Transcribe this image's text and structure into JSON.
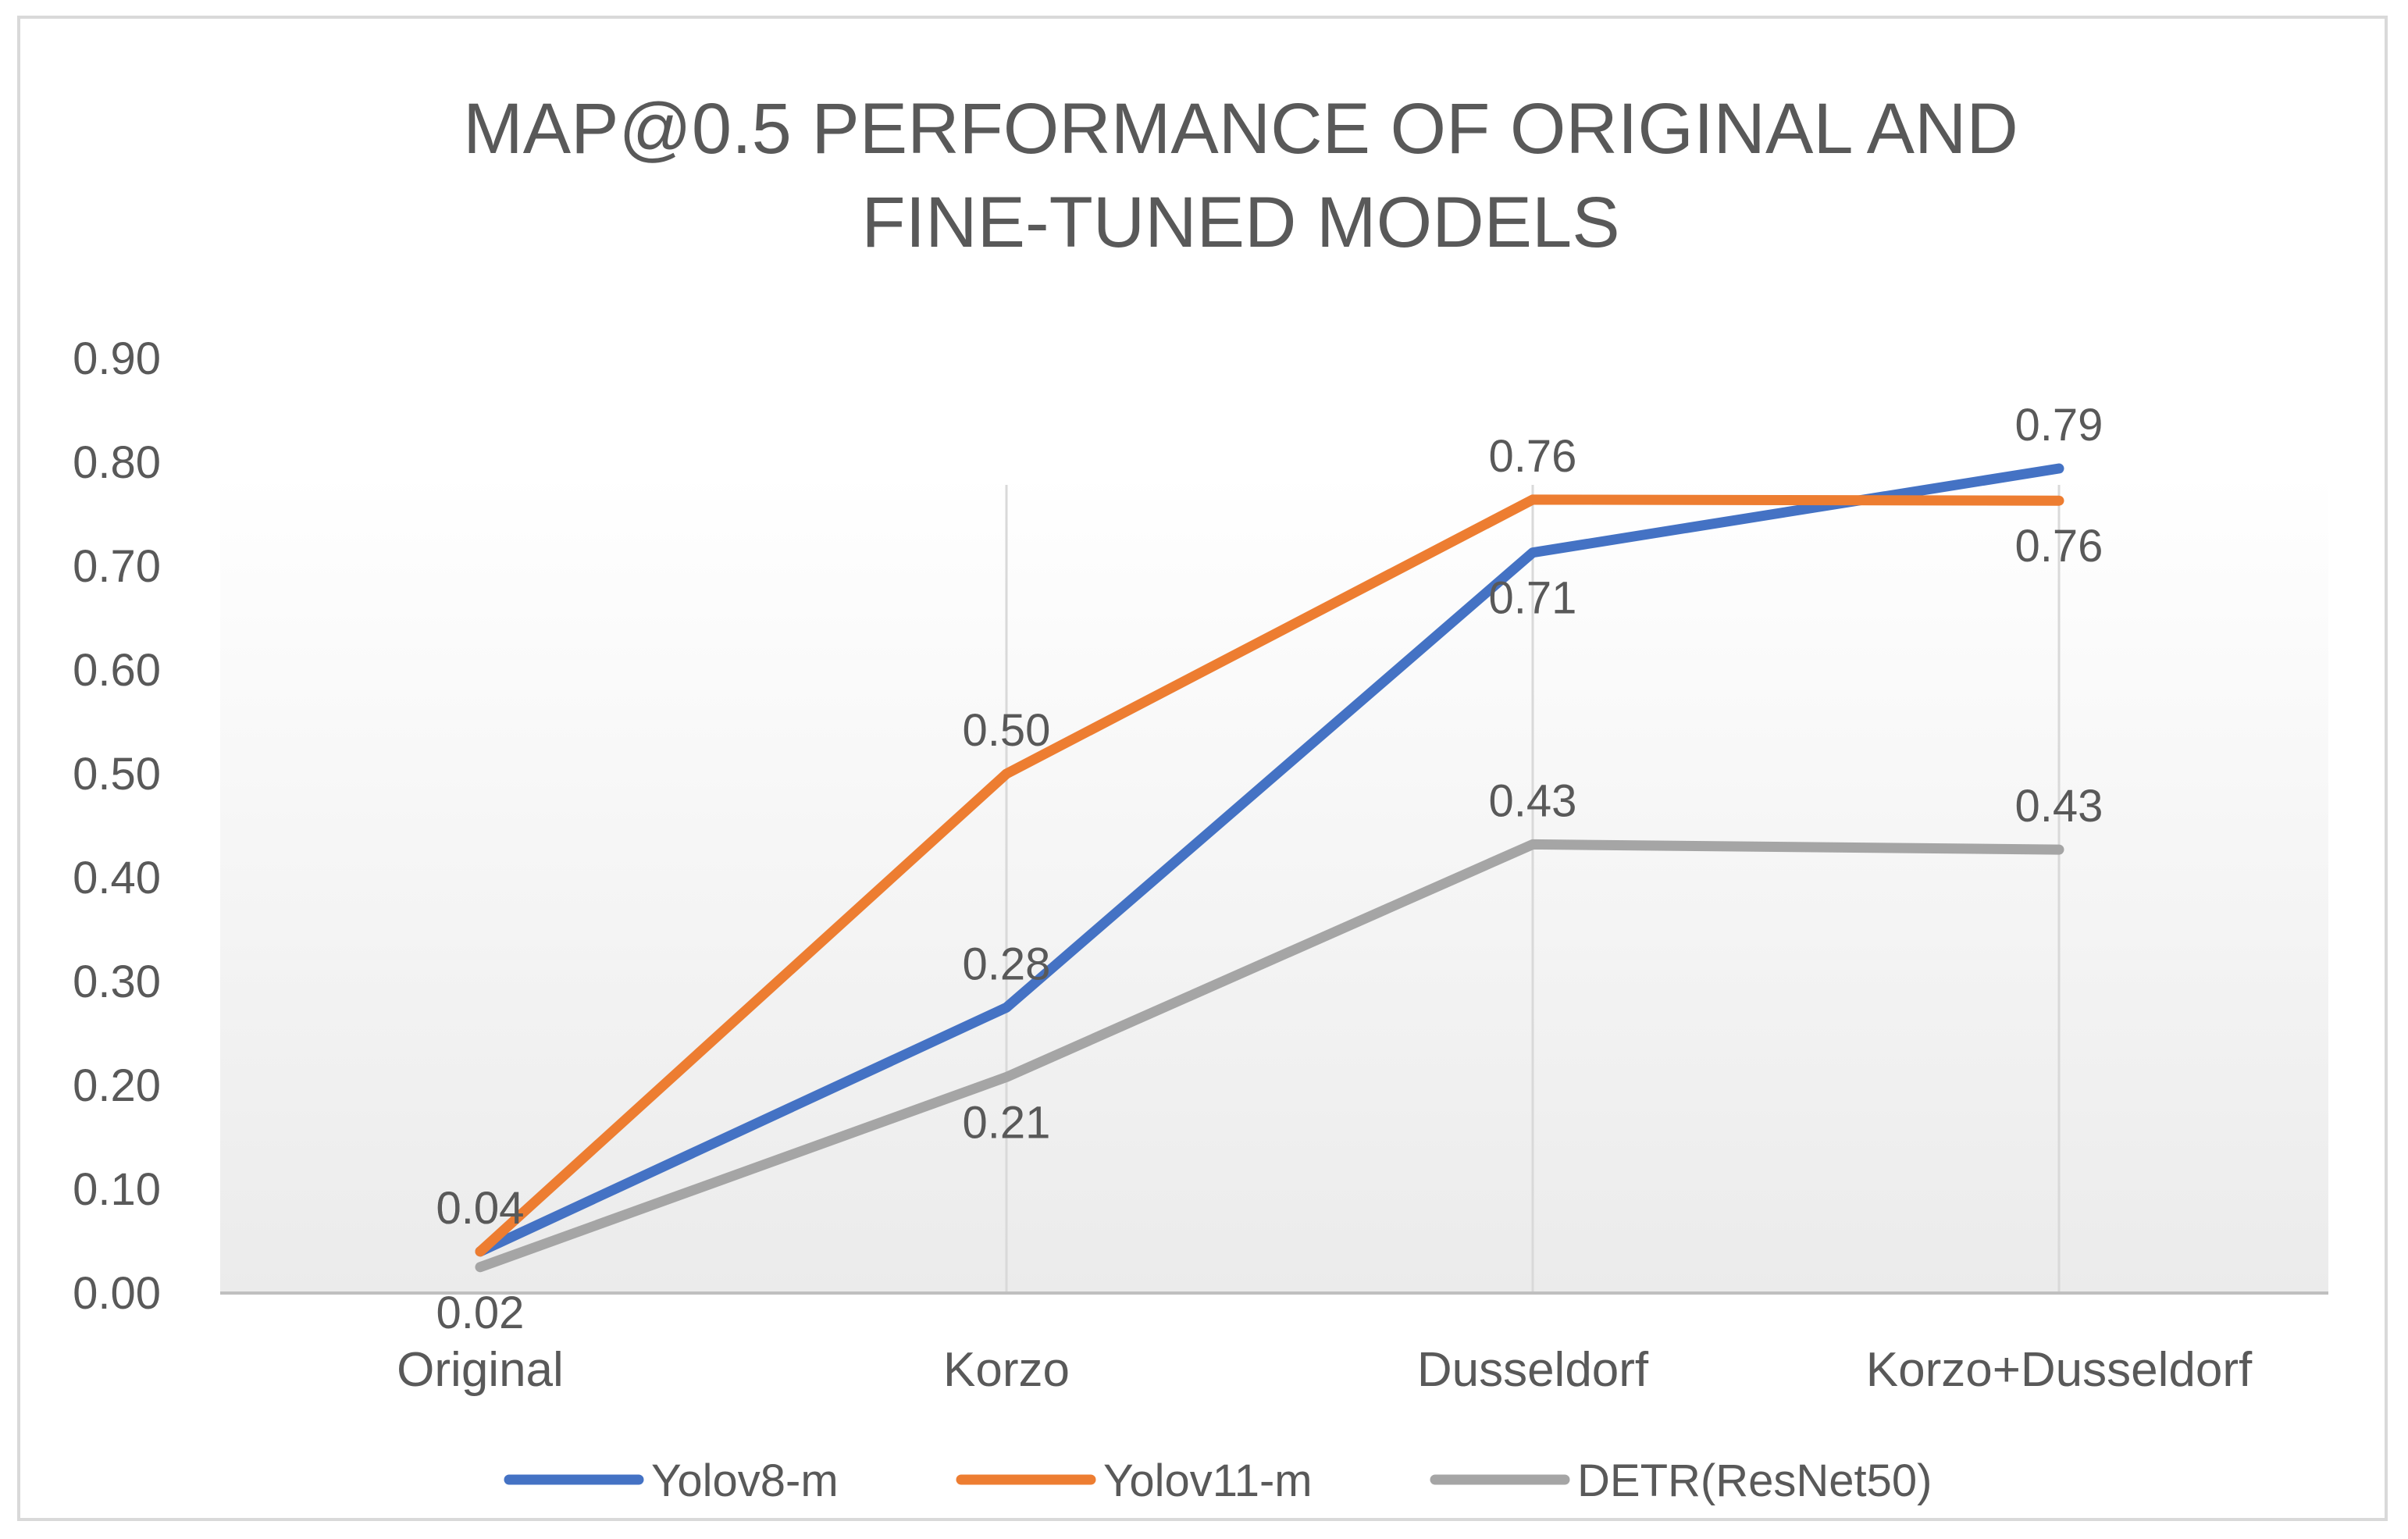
{
  "chart_data": {
    "type": "line",
    "title_lines": [
      "MAP@0.5 PERFORMANCE OF ORIGINAL AND",
      "FINE-TUNED MODELS"
    ],
    "xlabel": "",
    "ylabel": "",
    "categories": [
      "Original",
      "Korzo",
      "Dusseldorf",
      "Korzo+Dusseldorf"
    ],
    "ylim": [
      0,
      0.9
    ],
    "ytick_values": [
      0,
      0.1,
      0.2,
      0.3,
      0.4,
      0.5,
      0.6,
      0.7,
      0.8,
      0.9
    ],
    "ytick_labels": [
      "0.00",
      "0.10",
      "0.20",
      "0.30",
      "0.40",
      "0.50",
      "0.60",
      "0.70",
      "0.80",
      "0.90"
    ],
    "grid": "vertical",
    "legend_position": "bottom",
    "series": [
      {
        "name": "Yolov8-m",
        "color": "#4472c4",
        "values": [
          0.04,
          0.275,
          0.713,
          0.794
        ],
        "labels": [
          "0.04",
          "0.28",
          "0.71",
          "0.79"
        ],
        "label_positions": [
          "above",
          "above",
          "below",
          "above"
        ]
      },
      {
        "name": "Yolov11-m",
        "color": "#ed7d31",
        "values": [
          0.04,
          0.5,
          0.764,
          0.763
        ],
        "labels": [
          "0.04",
          "0.50",
          "0.76",
          "0.76"
        ],
        "label_positions": [
          "above",
          "above",
          "above",
          "below"
        ]
      },
      {
        "name": "DETR(ResNet50)",
        "color": "#a5a5a5",
        "values": [
          0.025,
          0.208,
          0.432,
          0.427
        ],
        "labels": [
          "0.02",
          "0.21",
          "0.43",
          "0.43"
        ],
        "label_positions": [
          "below",
          "below",
          "above",
          "above"
        ]
      }
    ]
  }
}
